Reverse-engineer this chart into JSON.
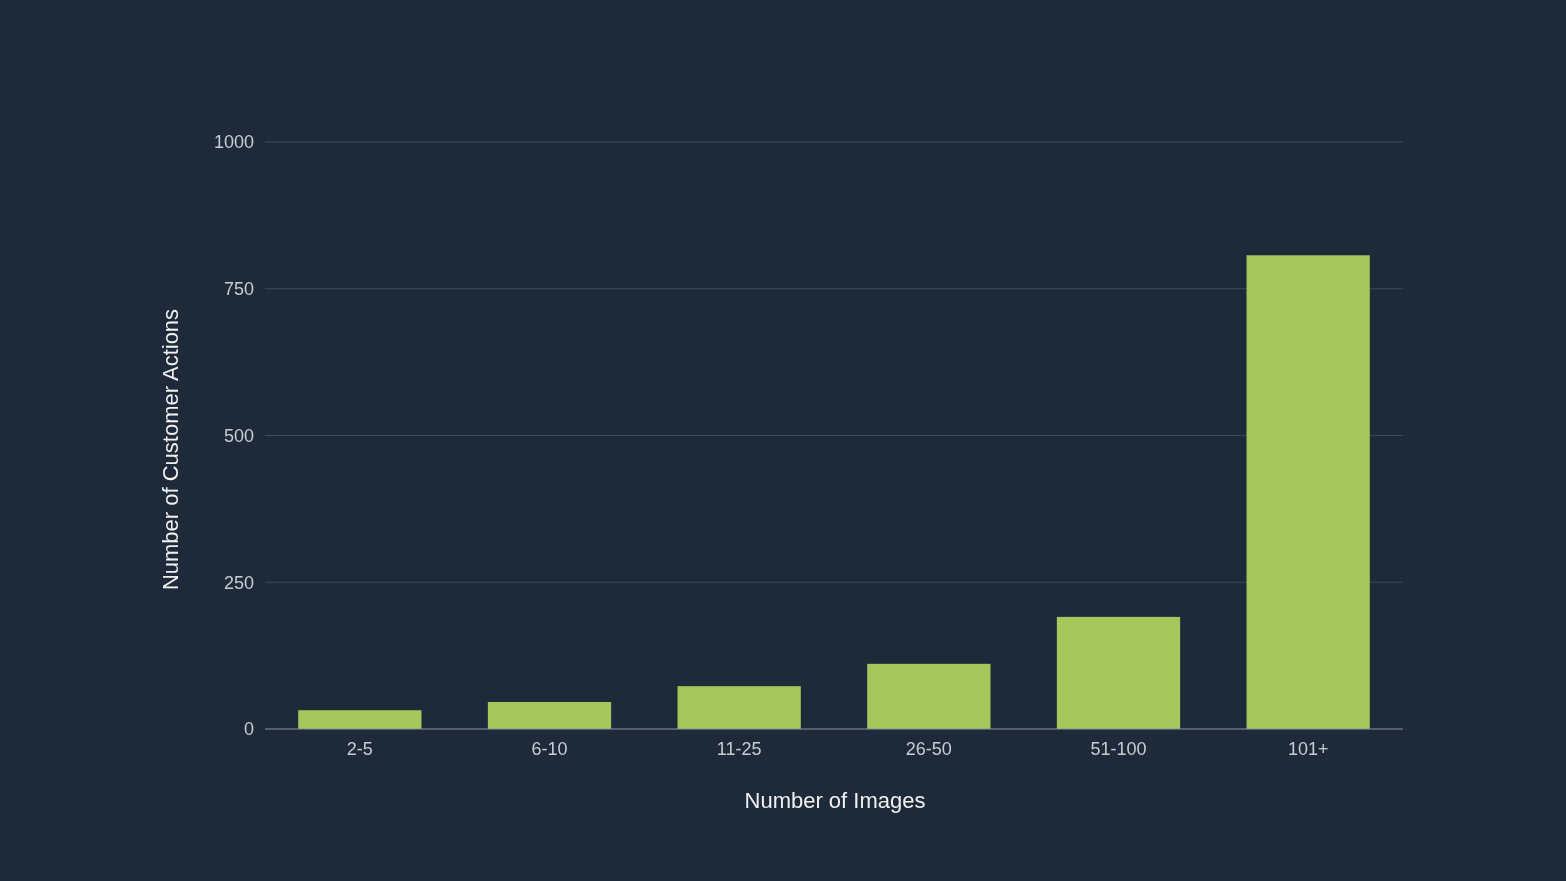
{
  "chart_data": {
    "type": "bar",
    "xlabel": "Number of Images",
    "ylabel": "Number of Customer Actions",
    "categories": [
      "2-5",
      "6-10",
      "11-25",
      "26-50",
      "51-100",
      "101+"
    ],
    "values": [
      32,
      46,
      73,
      111,
      191,
      807
    ],
    "color": "#a4c65a",
    "ylim": [
      0,
      1000
    ],
    "yticks": [
      0,
      250,
      500,
      750,
      1000
    ],
    "grid": "y"
  }
}
